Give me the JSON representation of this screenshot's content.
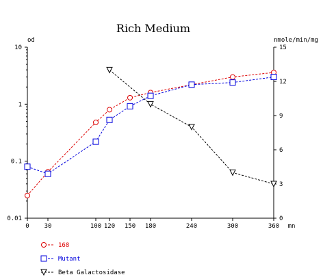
{
  "chart_data": {
    "type": "line",
    "title": "Rich Medium",
    "xlabel": "mn",
    "ylabel_left": "od",
    "ylabel_right": "nmole/min/mg",
    "x_ticks": [
      0,
      30,
      100,
      120,
      150,
      180,
      240,
      300,
      360
    ],
    "xlim": [
      0,
      360
    ],
    "yleft_scale": "log",
    "yleft_ticks": [
      "0.01",
      "0.1",
      "1",
      "10"
    ],
    "yleft_lim": [
      0.01,
      10
    ],
    "yright_ticks": [
      "0",
      "3",
      "6",
      "9",
      "12",
      "15"
    ],
    "yright_lim": [
      0,
      15
    ],
    "grid": false,
    "legend_position": "bottom-left",
    "series": [
      {
        "name": "168",
        "axis": "left",
        "color": "#dd0000",
        "marker": "circle",
        "x": [
          0,
          30,
          100,
          120,
          150,
          180,
          240,
          300,
          360
        ],
        "y": [
          0.025,
          0.065,
          0.48,
          0.8,
          1.3,
          1.6,
          2.2,
          3.0,
          3.6
        ]
      },
      {
        "name": "Mutant",
        "axis": "left",
        "color": "#0000dd",
        "marker": "square",
        "x": [
          0,
          30,
          100,
          120,
          150,
          180,
          240,
          300,
          360
        ],
        "y": [
          0.08,
          0.06,
          0.22,
          0.53,
          0.92,
          1.4,
          2.2,
          2.4,
          3.0
        ]
      },
      {
        "name": "Beta Galactosidase",
        "axis": "right",
        "color": "#000000",
        "marker": "triangle-down",
        "x": [
          120,
          180,
          240,
          300,
          360
        ],
        "y": [
          13.0,
          10.0,
          8.0,
          4.0,
          3.0
        ]
      }
    ]
  }
}
